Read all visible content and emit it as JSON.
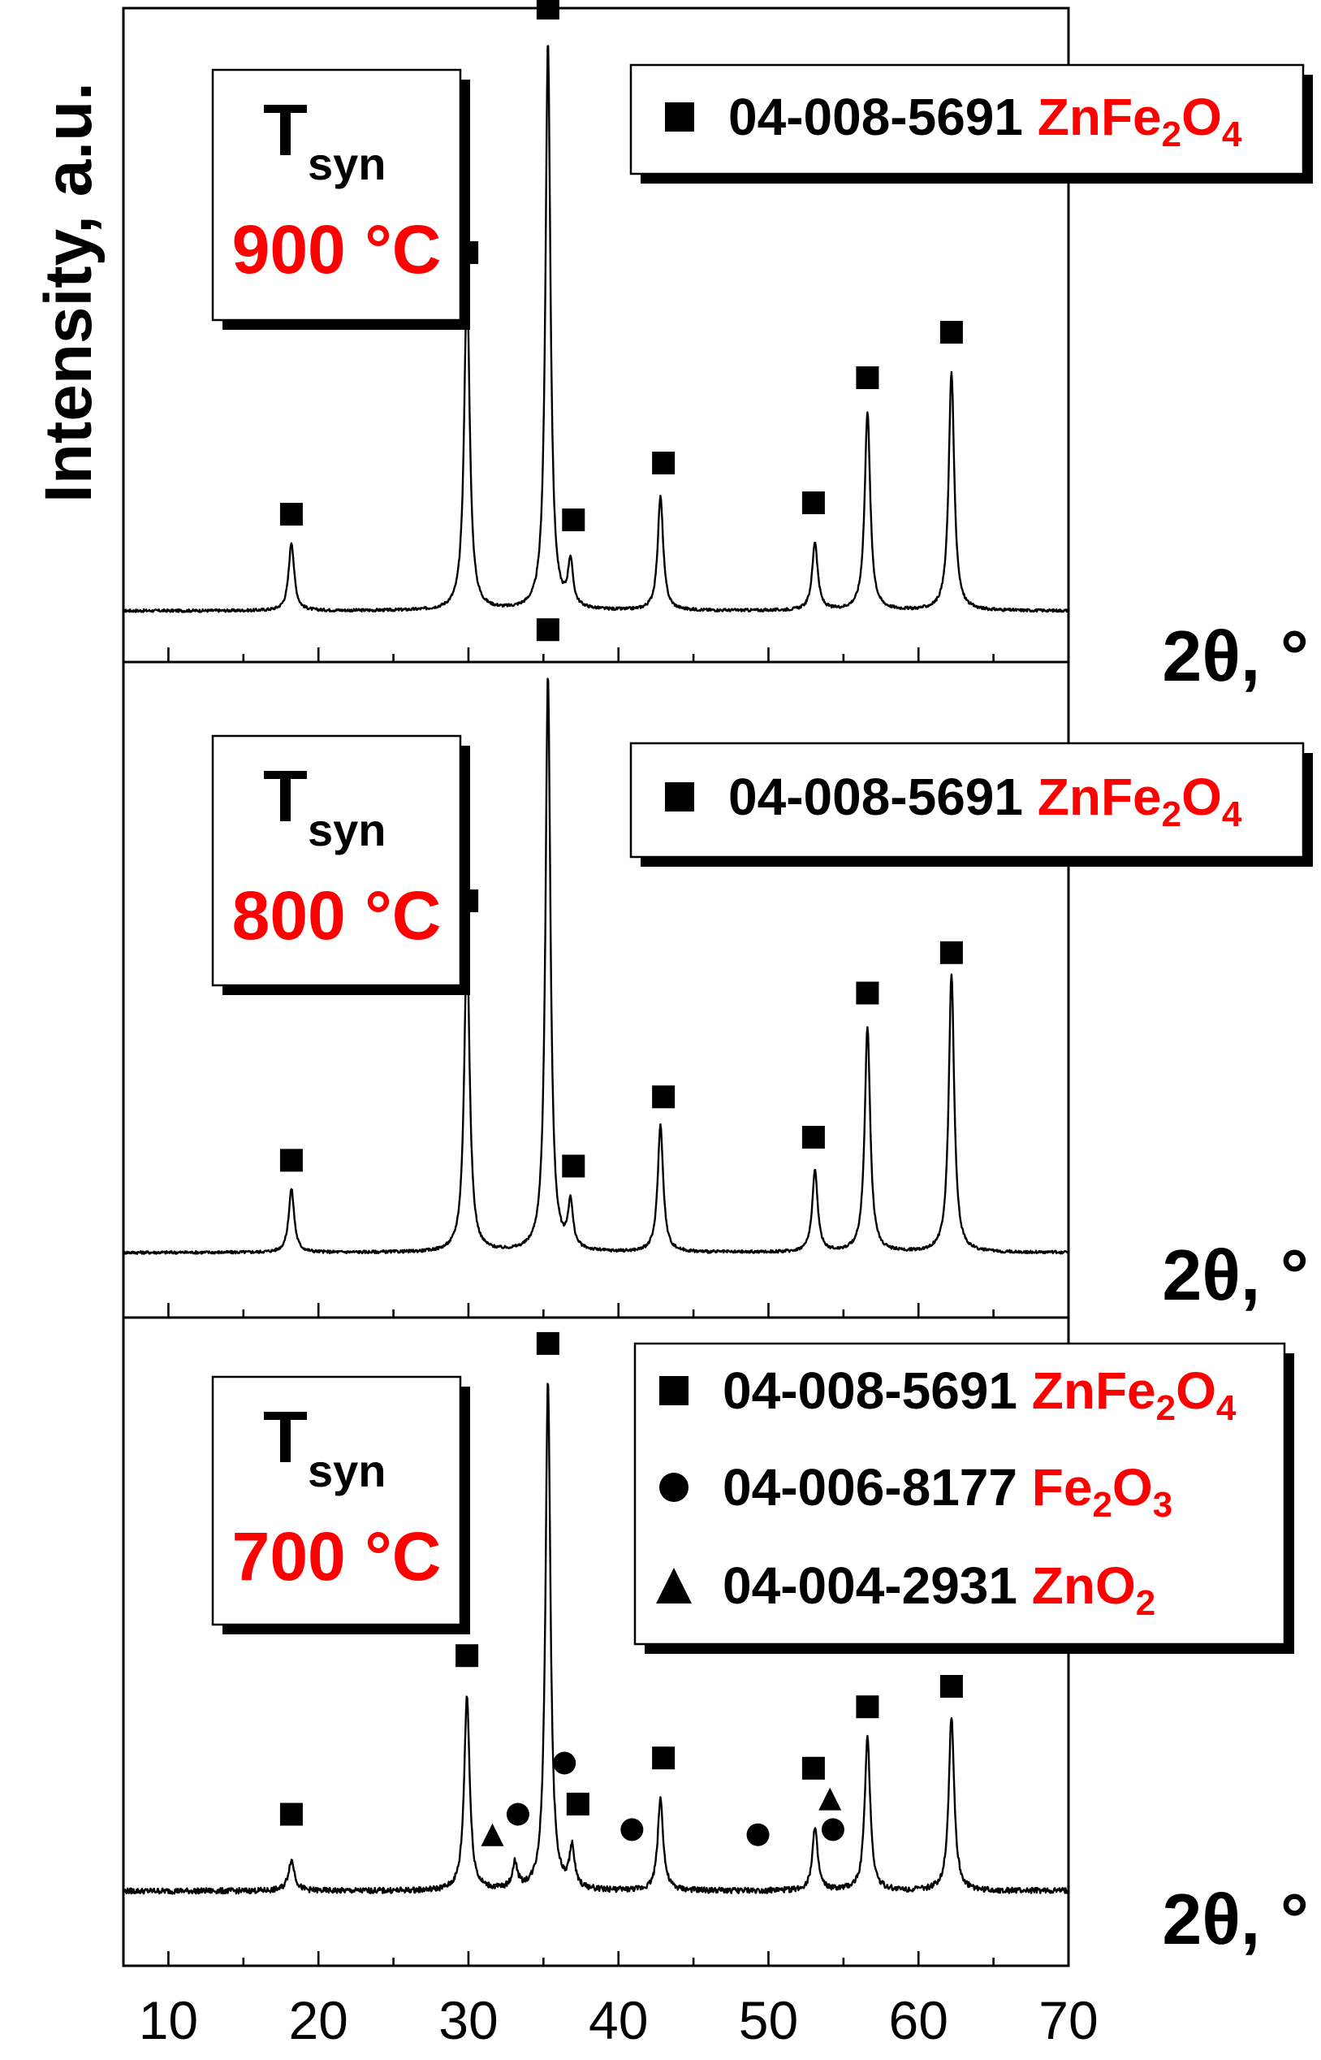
{
  "chart_data": {
    "type": "line",
    "y_label": "Intensity, a.u.",
    "x_label": "2θ, °",
    "x_range": [
      7,
      70
    ],
    "x_ticks": [
      10,
      20,
      30,
      40,
      50,
      60,
      70
    ],
    "y_units": "arbitrary",
    "grid": false,
    "panels": [
      {
        "temperature_prefix": "T",
        "temperature_sub": "syn",
        "temperature_value": "900 °C",
        "baseline": 2.0,
        "noise": 0.25,
        "peaks": [
          {
            "x": 18.2,
            "h": 12,
            "w": 0.22
          },
          {
            "x": 29.9,
            "h": 58,
            "w": 0.22
          },
          {
            "x": 35.3,
            "h": 100,
            "w": 0.2
          },
          {
            "x": 36.8,
            "h": 8,
            "w": 0.2
          },
          {
            "x": 42.8,
            "h": 20,
            "w": 0.22
          },
          {
            "x": 53.1,
            "h": 12,
            "w": 0.22
          },
          {
            "x": 56.6,
            "h": 35,
            "w": 0.22
          },
          {
            "x": 62.2,
            "h": 42,
            "w": 0.22
          }
        ],
        "markers": [
          {
            "symbol": "square",
            "x": 18.2,
            "y": 17
          },
          {
            "symbol": "square",
            "x": 29.9,
            "y": 63
          },
          {
            "symbol": "square",
            "x": 35.3,
            "y": 106
          },
          {
            "symbol": "square",
            "x": 37.0,
            "y": 16
          },
          {
            "symbol": "square",
            "x": 43.0,
            "y": 26
          },
          {
            "symbol": "square",
            "x": 53.0,
            "y": 19
          },
          {
            "symbol": "square",
            "x": 56.6,
            "y": 41
          },
          {
            "symbol": "square",
            "x": 62.2,
            "y": 49
          }
        ],
        "legend": [
          {
            "symbol": "square",
            "code": "04-008-5691",
            "formula": [
              [
                "ZnFe",
                ""
              ],
              [
                "2",
                "sub"
              ],
              [
                "O",
                ""
              ],
              [
                "4",
                "sub"
              ]
            ]
          }
        ]
      },
      {
        "temperature_prefix": "T",
        "temperature_sub": "syn",
        "temperature_value": "800 °C",
        "baseline": 2.0,
        "noise": 0.25,
        "peaks": [
          {
            "x": 18.2,
            "h": 11,
            "w": 0.22
          },
          {
            "x": 29.9,
            "h": 54,
            "w": 0.22
          },
          {
            "x": 35.3,
            "h": 100,
            "w": 0.2
          },
          {
            "x": 36.8,
            "h": 8,
            "w": 0.2
          },
          {
            "x": 42.8,
            "h": 22,
            "w": 0.22
          },
          {
            "x": 53.1,
            "h": 14,
            "w": 0.22
          },
          {
            "x": 56.6,
            "h": 39,
            "w": 0.22
          },
          {
            "x": 62.2,
            "h": 48,
            "w": 0.22
          }
        ],
        "markers": [
          {
            "symbol": "square",
            "x": 18.2,
            "y": 16
          },
          {
            "symbol": "square",
            "x": 29.9,
            "y": 61
          },
          {
            "symbol": "square",
            "x": 35.3,
            "y": 108
          },
          {
            "symbol": "square",
            "x": 37.0,
            "y": 15
          },
          {
            "symbol": "square",
            "x": 43.0,
            "y": 27
          },
          {
            "symbol": "square",
            "x": 53.0,
            "y": 20
          },
          {
            "symbol": "square",
            "x": 56.6,
            "y": 45
          },
          {
            "symbol": "square",
            "x": 62.2,
            "y": 52
          }
        ],
        "legend": [
          {
            "symbol": "square",
            "code": "04-008-5691",
            "formula": [
              [
                "ZnFe",
                ""
              ],
              [
                "2",
                "sub"
              ],
              [
                "O",
                ""
              ],
              [
                "4",
                "sub"
              ]
            ]
          }
        ]
      },
      {
        "temperature_prefix": "T",
        "temperature_sub": "syn",
        "temperature_value": "700 °C",
        "baseline": 3.0,
        "noise": 0.55,
        "peaks": [
          {
            "x": 18.2,
            "h": 6,
            "w": 0.25
          },
          {
            "x": 29.9,
            "h": 38,
            "w": 0.22
          },
          {
            "x": 33.1,
            "h": 5,
            "w": 0.2
          },
          {
            "x": 35.3,
            "h": 100,
            "w": 0.2
          },
          {
            "x": 36.9,
            "h": 8,
            "w": 0.2
          },
          {
            "x": 42.8,
            "h": 18,
            "w": 0.22
          },
          {
            "x": 53.1,
            "h": 12,
            "w": 0.22
          },
          {
            "x": 56.6,
            "h": 30,
            "w": 0.22
          },
          {
            "x": 62.2,
            "h": 34,
            "w": 0.22
          }
        ],
        "markers": [
          {
            "symbol": "square",
            "x": 18.2,
            "y": 15
          },
          {
            "symbol": "triangle",
            "x": 31.6,
            "y": 11
          },
          {
            "symbol": "square",
            "x": 29.9,
            "y": 46
          },
          {
            "symbol": "circle",
            "x": 33.3,
            "y": 15
          },
          {
            "symbol": "square",
            "x": 35.3,
            "y": 107
          },
          {
            "symbol": "circle",
            "x": 36.4,
            "y": 25
          },
          {
            "symbol": "square",
            "x": 37.3,
            "y": 17
          },
          {
            "symbol": "circle",
            "x": 40.9,
            "y": 12
          },
          {
            "symbol": "square",
            "x": 43.0,
            "y": 26
          },
          {
            "symbol": "circle",
            "x": 49.3,
            "y": 11
          },
          {
            "symbol": "square",
            "x": 53.0,
            "y": 24
          },
          {
            "symbol": "triangle",
            "x": 54.1,
            "y": 18
          },
          {
            "symbol": "circle",
            "x": 54.3,
            "y": 12
          },
          {
            "symbol": "square",
            "x": 56.6,
            "y": 36
          },
          {
            "symbol": "square",
            "x": 62.2,
            "y": 40
          }
        ],
        "legend": [
          {
            "symbol": "square",
            "code": "04-008-5691",
            "formula": [
              [
                "ZnFe",
                ""
              ],
              [
                "2",
                "sub"
              ],
              [
                "O",
                ""
              ],
              [
                "4",
                "sub"
              ]
            ]
          },
          {
            "symbol": "circle",
            "code": "04-006-8177",
            "formula": [
              [
                "Fe",
                ""
              ],
              [
                "2",
                "sub"
              ],
              [
                "O",
                ""
              ],
              [
                "3",
                "sub"
              ]
            ]
          },
          {
            "symbol": "triangle",
            "code": "04-004-2931",
            "formula": [
              [
                "ZnO",
                ""
              ],
              [
                "2",
                "sub"
              ]
            ]
          }
        ]
      }
    ]
  },
  "colors": {
    "trace": "#000000",
    "formula": "#ff0000",
    "temperature": "#ff0000"
  }
}
